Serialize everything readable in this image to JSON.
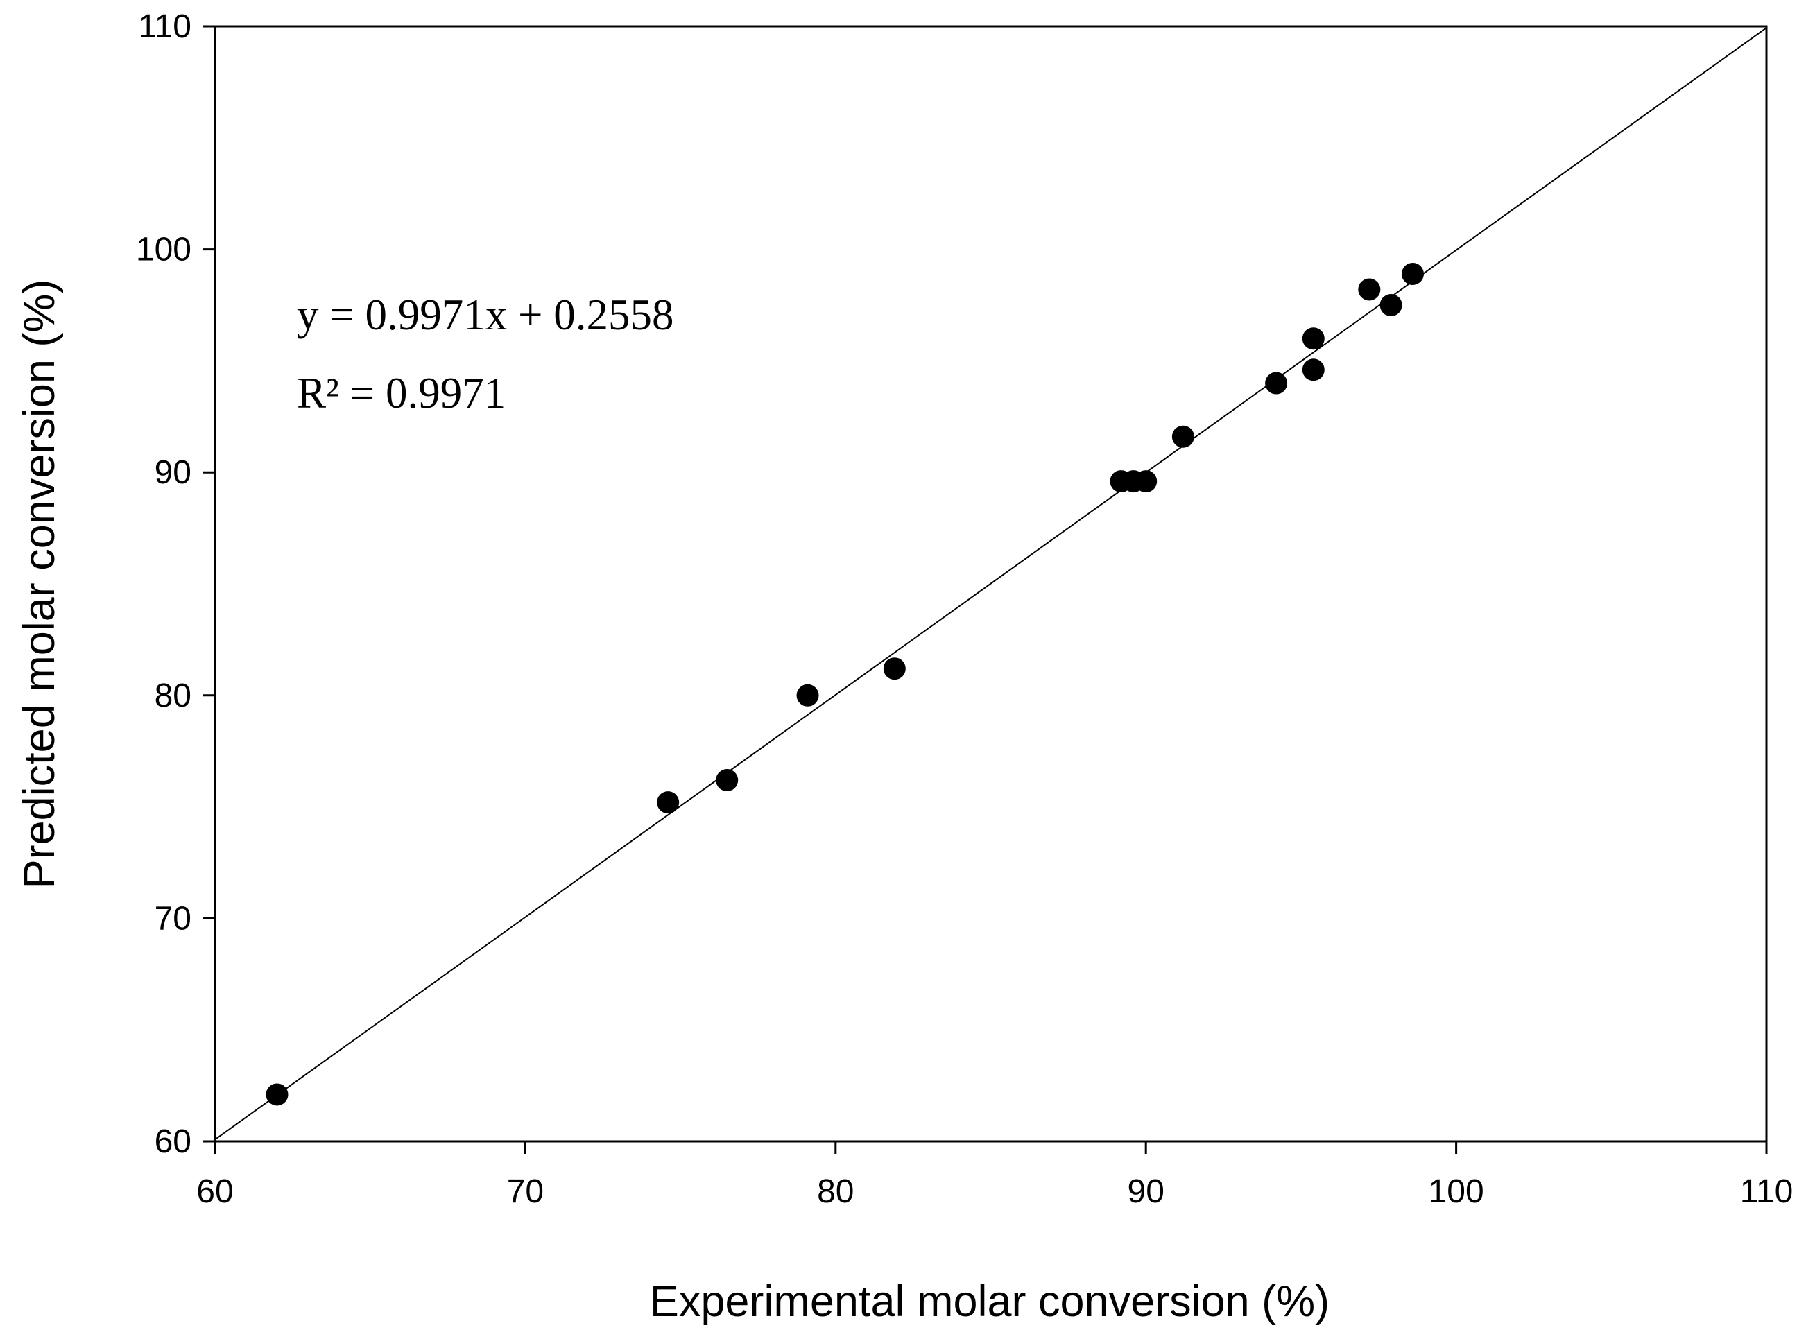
{
  "chart_data": {
    "type": "scatter",
    "title": "",
    "xlabel": "Experimental molar conversion (%)",
    "ylabel": "Predicted molar conversion (%)",
    "xlim": [
      60,
      110
    ],
    "ylim": [
      60,
      110
    ],
    "xticks": [
      60,
      70,
      80,
      90,
      100,
      110
    ],
    "yticks": [
      60,
      70,
      80,
      90,
      100,
      110
    ],
    "grid": false,
    "legend": "none",
    "series": [
      {
        "name": "data",
        "x": [
          62.0,
          74.6,
          76.5,
          79.1,
          81.9,
          89.2,
          89.6,
          90.0,
          91.2,
          94.2,
          95.4,
          95.4,
          97.2,
          97.9,
          98.6
        ],
        "y": [
          62.1,
          75.2,
          76.2,
          80.0,
          81.2,
          89.6,
          89.6,
          89.6,
          91.6,
          94.0,
          96.0,
          94.6,
          98.2,
          97.5,
          98.9
        ]
      }
    ],
    "fit_line": {
      "slope": 0.9971,
      "intercept": 0.2558,
      "x_range": [
        60,
        110
      ]
    },
    "annotations": {
      "equation": "y = 0.9971x + 0.2558",
      "r_squared": "R² = 0.9971"
    }
  },
  "colors": {
    "axis": "#000000",
    "marker": "#000000",
    "background": "#ffffff"
  }
}
